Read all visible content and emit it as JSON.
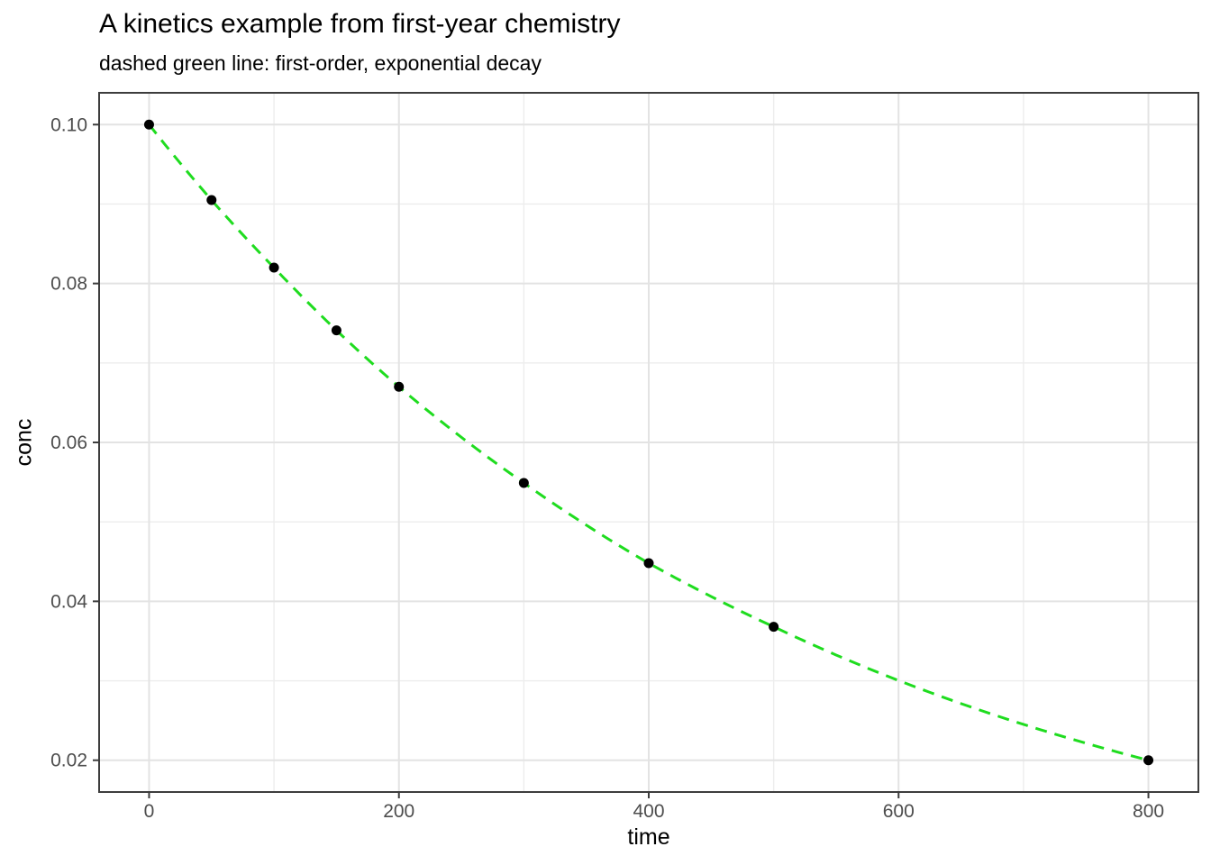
{
  "chart_data": {
    "type": "scatter",
    "title": "A kinetics example from first-year chemistry",
    "subtitle": "dashed green line: first-order, exponential decay",
    "xlabel": "time",
    "ylabel": "conc",
    "x": [
      0,
      50,
      100,
      150,
      200,
      300,
      400,
      500,
      800
    ],
    "y": [
      0.1,
      0.0905,
      0.082,
      0.0741,
      0.067,
      0.0549,
      0.0448,
      0.0368,
      0.02
    ],
    "line": {
      "description": "first-order exponential decay fit through points",
      "style": "dashed",
      "color": "#1fdc1f",
      "width": 3,
      "dash": "13 9",
      "interpolation": "exponential"
    },
    "point": {
      "color": "#000000",
      "radius": 5.5
    },
    "xlim": [
      -40,
      840
    ],
    "ylim": [
      0.016,
      0.104
    ],
    "x_ticks": [
      0,
      200,
      400,
      600,
      800
    ],
    "x_tick_labels": [
      "0",
      "200",
      "400",
      "600",
      "800"
    ],
    "y_ticks": [
      0.02,
      0.04,
      0.06,
      0.08,
      0.1
    ],
    "y_tick_labels": [
      "0.02",
      "0.04",
      "0.06",
      "0.08",
      "0.10"
    ],
    "x_minor_gridlines": [
      100,
      300,
      500,
      700
    ],
    "y_minor_gridlines": [
      0.03,
      0.05,
      0.07,
      0.09
    ],
    "grid": true,
    "legend": "none",
    "theme": {
      "background": "#ffffff",
      "panel_background": "#ffffff",
      "grid_major_color": "#e3e3e3",
      "grid_minor_color": "#ededed",
      "panel_border_color": "#3d3d3d",
      "tick_color": "#3d3d3d",
      "tick_label_color": "#4d4d4d",
      "text_color": "#000000"
    }
  }
}
